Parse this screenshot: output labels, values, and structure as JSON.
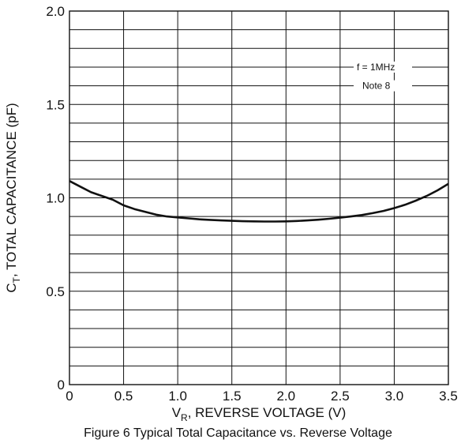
{
  "chart_data": {
    "type": "line",
    "title": "",
    "caption": "Figure 6 Typical Total Capacitance vs. Reverse Voltage",
    "xlabel": {
      "prefix": "V",
      "sub": "R",
      "rest": ", REVERSE VOLTAGE (V)"
    },
    "ylabel": {
      "prefix": "C",
      "sub": "T",
      "rest": ", TOTAL CAPACITANCE (pF)"
    },
    "xlim": [
      0,
      3.5
    ],
    "ylim": [
      0,
      2.0
    ],
    "x_ticks": [
      0,
      0.5,
      1.0,
      1.5,
      2.0,
      2.5,
      3.0,
      3.5
    ],
    "x_tick_labels": [
      "0",
      "0.5",
      "1.0",
      "1.5",
      "2.0",
      "2.5",
      "3.0",
      "3.5"
    ],
    "y_ticks": [
      0,
      0.5,
      1.0,
      1.5,
      2.0
    ],
    "y_tick_labels": [
      "0",
      "0.5",
      "1.0",
      "1.5",
      "2.0"
    ],
    "grid": true,
    "x_grid_step": 0.5,
    "y_grid_step": 0.1,
    "annotations": [
      "f = 1MHz",
      "Note 8"
    ],
    "series": [
      {
        "x": [
          0,
          0.1,
          0.2,
          0.3,
          0.4,
          0.5,
          0.6,
          0.7,
          0.8,
          0.9,
          1.0,
          1.1,
          1.2,
          1.3,
          1.4,
          1.5,
          1.6,
          1.7,
          1.8,
          1.9,
          2.0,
          2.1,
          2.2,
          2.3,
          2.4,
          2.5,
          2.6,
          2.7,
          2.8,
          2.9,
          3.0,
          3.1,
          3.2,
          3.3,
          3.4,
          3.5
        ],
        "y": [
          1.09,
          1.06,
          1.03,
          1.01,
          0.99,
          0.96,
          0.94,
          0.925,
          0.91,
          0.9,
          0.895,
          0.89,
          0.885,
          0.882,
          0.879,
          0.877,
          0.875,
          0.874,
          0.873,
          0.873,
          0.874,
          0.876,
          0.879,
          0.883,
          0.888,
          0.894,
          0.9,
          0.908,
          0.918,
          0.93,
          0.945,
          0.963,
          0.985,
          1.01,
          1.04,
          1.075
        ],
        "color": "#111111"
      }
    ]
  }
}
